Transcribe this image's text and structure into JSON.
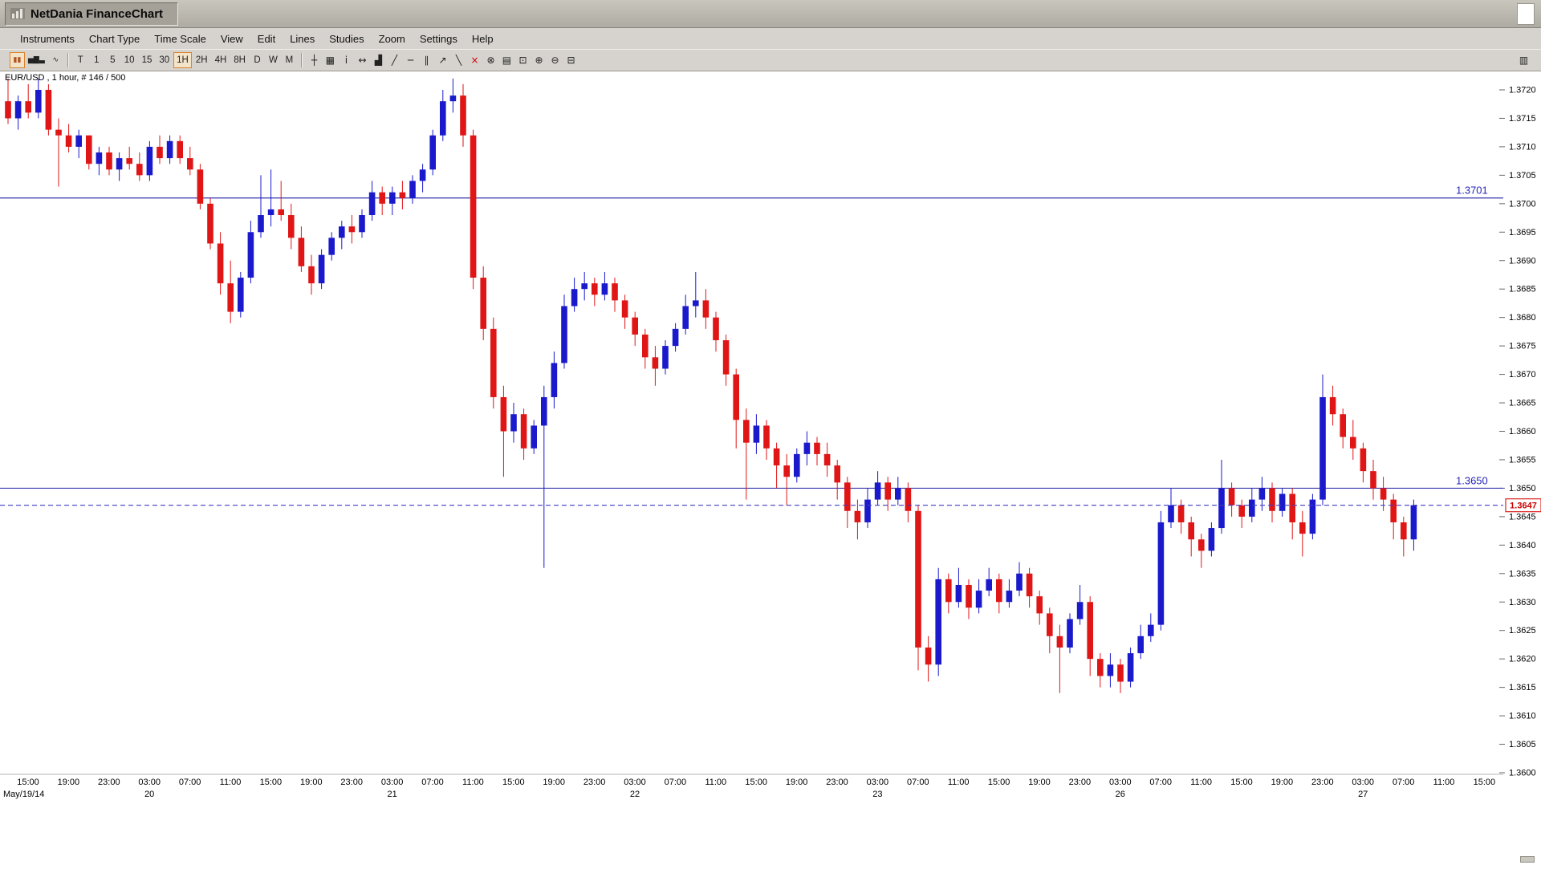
{
  "window": {
    "title": "NetDania FinanceChart"
  },
  "menubar": {
    "items": [
      "Instruments",
      "Chart Type",
      "Time Scale",
      "View",
      "Edit",
      "Lines",
      "Studies",
      "Zoom",
      "Settings",
      "Help"
    ]
  },
  "toolbar": {
    "mode_buttons": [
      {
        "name": "pause-icon",
        "glyph": "▮▮",
        "color": "#b3541f",
        "active": true
      },
      {
        "name": "bar-chart-type-icon",
        "glyph": "▅▇▃",
        "color": "#222222",
        "active": false
      },
      {
        "name": "line-chart-type-icon",
        "glyph": "∿",
        "color": "#222222",
        "active": false
      }
    ],
    "timeframes": [
      "T",
      "1",
      "5",
      "10",
      "15",
      "30",
      "1H",
      "2H",
      "4H",
      "8H",
      "D",
      "W",
      "M"
    ],
    "selected_timeframe": "1H",
    "tool_icons": [
      {
        "name": "crosshair-icon",
        "glyph": "┼",
        "color": "#222222"
      },
      {
        "name": "grid-icon",
        "glyph": "▦",
        "color": "#222222"
      },
      {
        "name": "info-icon",
        "glyph": "i",
        "color": "#222222"
      },
      {
        "name": "expand-horizontal-icon",
        "glyph": "↔",
        "color": "#222222"
      },
      {
        "name": "volume-icon",
        "glyph": "▟",
        "color": "#222222"
      },
      {
        "name": "trendline-icon",
        "glyph": "╱",
        "color": "#222222"
      },
      {
        "name": "horizontal-line-icon",
        "glyph": "─",
        "color": "#222222"
      },
      {
        "name": "channel-icon",
        "glyph": "∥",
        "color": "#222222"
      },
      {
        "name": "ray-icon",
        "glyph": "↗",
        "color": "#222222"
      },
      {
        "name": "freehand-draw-icon",
        "glyph": "╲",
        "color": "#222222"
      },
      {
        "name": "delete-drawing-icon",
        "glyph": "×",
        "color": "#cc0000"
      },
      {
        "name": "delete-all-icon",
        "glyph": "⊗",
        "color": "#222222"
      },
      {
        "name": "print-icon",
        "glyph": "▤",
        "color": "#222222"
      },
      {
        "name": "zoom-box-icon",
        "glyph": "⊡",
        "color": "#222222"
      },
      {
        "name": "zoom-in-icon",
        "glyph": "⊕",
        "color": "#222222"
      },
      {
        "name": "zoom-out-icon",
        "glyph": "⊖",
        "color": "#222222"
      },
      {
        "name": "zoom-reset-icon",
        "glyph": "⊟",
        "color": "#222222"
      }
    ],
    "right_icon": {
      "name": "axis-settings-icon",
      "glyph": "▥"
    }
  },
  "chart_data": {
    "type": "candlestick",
    "symbol": "EUR/USD",
    "interval": "1 hour",
    "bar_counter": "# 146 / 500",
    "title_label": "EUR/USD , 1 hour, # 146 / 500",
    "up_color": "#1a1acc",
    "down_color": "#e01616",
    "line_color": "#3535ad",
    "y_axis": {
      "min": 1.36,
      "max": 1.372,
      "tick_step": 0.0005
    },
    "x_axis": {
      "time_labels": [
        "15:00",
        "19:00",
        "23:00",
        "03:00",
        "07:00",
        "11:00",
        "15:00",
        "19:00",
        "23:00",
        "03:00",
        "07:00",
        "11:00",
        "15:00",
        "19:00",
        "23:00",
        "03:00",
        "07:00",
        "11:00",
        "15:00",
        "19:00",
        "23:00",
        "03:00",
        "07:00",
        "11:00",
        "15:00",
        "19:00",
        "23:00",
        "03:00",
        "07:00",
        "11:00",
        "15:00",
        "19:00",
        "23:00",
        "03:00",
        "07:00",
        "11:00",
        "15:00"
      ],
      "date_labels": [
        {
          "label": "May/19/14",
          "tick_index": 0
        },
        {
          "label": "20",
          "tick_index": 3
        },
        {
          "label": "21",
          "tick_index": 9
        },
        {
          "label": "22",
          "tick_index": 15
        },
        {
          "label": "23",
          "tick_index": 21
        },
        {
          "label": "26",
          "tick_index": 27
        },
        {
          "label": "27",
          "tick_index": 33
        }
      ]
    },
    "horizontal_lines": [
      {
        "price": 1.3701,
        "label": "1.3701",
        "style": "solid"
      },
      {
        "price": 1.365,
        "label": "1.3650",
        "style": "solid"
      }
    ],
    "last_price": {
      "price": 1.3647,
      "label": "1.3647",
      "style": "dashed"
    },
    "candles": [
      [
        1.3718,
        1.3722,
        1.3714,
        1.3715
      ],
      [
        1.3715,
        1.3719,
        1.3713,
        1.3718
      ],
      [
        1.3718,
        1.3721,
        1.3715,
        1.3716
      ],
      [
        1.3716,
        1.3722,
        1.3715,
        1.372
      ],
      [
        1.372,
        1.3721,
        1.3712,
        1.3713
      ],
      [
        1.3713,
        1.3715,
        1.3703,
        1.3712
      ],
      [
        1.3712,
        1.3714,
        1.3709,
        1.371
      ],
      [
        1.371,
        1.3713,
        1.3708,
        1.3712
      ],
      [
        1.3712,
        1.3712,
        1.3706,
        1.3707
      ],
      [
        1.3707,
        1.371,
        1.3705,
        1.3709
      ],
      [
        1.3709,
        1.371,
        1.3705,
        1.3706
      ],
      [
        1.3706,
        1.3709,
        1.3704,
        1.3708
      ],
      [
        1.3708,
        1.371,
        1.3706,
        1.3707
      ],
      [
        1.3707,
        1.3709,
        1.3704,
        1.3705
      ],
      [
        1.3705,
        1.3711,
        1.3704,
        1.371
      ],
      [
        1.371,
        1.3712,
        1.3707,
        1.3708
      ],
      [
        1.3708,
        1.3712,
        1.3707,
        1.3711
      ],
      [
        1.3711,
        1.3712,
        1.3707,
        1.3708
      ],
      [
        1.3708,
        1.371,
        1.3705,
        1.3706
      ],
      [
        1.3706,
        1.3707,
        1.3699,
        1.37
      ],
      [
        1.37,
        1.3701,
        1.3692,
        1.3693
      ],
      [
        1.3693,
        1.3695,
        1.3684,
        1.3686
      ],
      [
        1.3686,
        1.369,
        1.3679,
        1.3681
      ],
      [
        1.3681,
        1.3688,
        1.368,
        1.3687
      ],
      [
        1.3687,
        1.3697,
        1.3686,
        1.3695
      ],
      [
        1.3695,
        1.3705,
        1.3694,
        1.3698
      ],
      [
        1.3698,
        1.3706,
        1.3696,
        1.3699
      ],
      [
        1.3699,
        1.3704,
        1.3697,
        1.3698
      ],
      [
        1.3698,
        1.37,
        1.3692,
        1.3694
      ],
      [
        1.3694,
        1.3696,
        1.3688,
        1.3689
      ],
      [
        1.3689,
        1.3691,
        1.3684,
        1.3686
      ],
      [
        1.3686,
        1.3692,
        1.3685,
        1.3691
      ],
      [
        1.3691,
        1.3695,
        1.369,
        1.3694
      ],
      [
        1.3694,
        1.3697,
        1.3692,
        1.3696
      ],
      [
        1.3696,
        1.3698,
        1.3693,
        1.3695
      ],
      [
        1.3695,
        1.3699,
        1.3694,
        1.3698
      ],
      [
        1.3698,
        1.3704,
        1.3697,
        1.3702
      ],
      [
        1.3702,
        1.3703,
        1.3698,
        1.37
      ],
      [
        1.37,
        1.3703,
        1.3698,
        1.3702
      ],
      [
        1.3702,
        1.3704,
        1.3699,
        1.3701
      ],
      [
        1.3701,
        1.3705,
        1.37,
        1.3704
      ],
      [
        1.3704,
        1.3707,
        1.3702,
        1.3706
      ],
      [
        1.3706,
        1.3713,
        1.3705,
        1.3712
      ],
      [
        1.3712,
        1.372,
        1.3711,
        1.3718
      ],
      [
        1.3718,
        1.3722,
        1.3716,
        1.3719
      ],
      [
        1.3719,
        1.3721,
        1.371,
        1.3712
      ],
      [
        1.3712,
        1.3713,
        1.3685,
        1.3687
      ],
      [
        1.3687,
        1.3689,
        1.3676,
        1.3678
      ],
      [
        1.3678,
        1.368,
        1.3664,
        1.3666
      ],
      [
        1.3666,
        1.3668,
        1.3652,
        1.366
      ],
      [
        1.366,
        1.3665,
        1.3658,
        1.3663
      ],
      [
        1.3663,
        1.3664,
        1.3655,
        1.3657
      ],
      [
        1.3657,
        1.3662,
        1.3656,
        1.3661
      ],
      [
        1.3661,
        1.3668,
        1.3636,
        1.3666
      ],
      [
        1.3666,
        1.3674,
        1.3664,
        1.3672
      ],
      [
        1.3672,
        1.3684,
        1.3671,
        1.3682
      ],
      [
        1.3682,
        1.3687,
        1.3681,
        1.3685
      ],
      [
        1.3685,
        1.3688,
        1.3683,
        1.3686
      ],
      [
        1.3686,
        1.3687,
        1.3682,
        1.3684
      ],
      [
        1.3684,
        1.3688,
        1.3683,
        1.3686
      ],
      [
        1.3686,
        1.3687,
        1.3681,
        1.3683
      ],
      [
        1.3683,
        1.3684,
        1.3678,
        1.368
      ],
      [
        1.368,
        1.3681,
        1.3675,
        1.3677
      ],
      [
        1.3677,
        1.3678,
        1.3671,
        1.3673
      ],
      [
        1.3673,
        1.3675,
        1.3668,
        1.3671
      ],
      [
        1.3671,
        1.3676,
        1.367,
        1.3675
      ],
      [
        1.3675,
        1.3679,
        1.3674,
        1.3678
      ],
      [
        1.3678,
        1.3684,
        1.3677,
        1.3682
      ],
      [
        1.3682,
        1.3688,
        1.368,
        1.3683
      ],
      [
        1.3683,
        1.3685,
        1.3678,
        1.368
      ],
      [
        1.368,
        1.3681,
        1.3674,
        1.3676
      ],
      [
        1.3676,
        1.3677,
        1.3668,
        1.367
      ],
      [
        1.367,
        1.3671,
        1.3657,
        1.3662
      ],
      [
        1.3662,
        1.3664,
        1.3648,
        1.3658
      ],
      [
        1.3658,
        1.3663,
        1.3656,
        1.3661
      ],
      [
        1.3661,
        1.3662,
        1.3655,
        1.3657
      ],
      [
        1.3657,
        1.3658,
        1.365,
        1.3654
      ],
      [
        1.3654,
        1.3656,
        1.3647,
        1.3652
      ],
      [
        1.3652,
        1.3657,
        1.3651,
        1.3656
      ],
      [
        1.3656,
        1.366,
        1.3654,
        1.3658
      ],
      [
        1.3658,
        1.3659,
        1.3654,
        1.3656
      ],
      [
        1.3656,
        1.3658,
        1.3652,
        1.3654
      ],
      [
        1.3654,
        1.3655,
        1.3648,
        1.3651
      ],
      [
        1.3651,
        1.3652,
        1.3643,
        1.3646
      ],
      [
        1.3646,
        1.3648,
        1.3641,
        1.3644
      ],
      [
        1.3644,
        1.365,
        1.3643,
        1.3648
      ],
      [
        1.3648,
        1.3653,
        1.3647,
        1.3651
      ],
      [
        1.3651,
        1.3652,
        1.3646,
        1.3648
      ],
      [
        1.3648,
        1.3652,
        1.3647,
        1.365
      ],
      [
        1.365,
        1.3651,
        1.3644,
        1.3646
      ],
      [
        1.3646,
        1.3647,
        1.3618,
        1.3622
      ],
      [
        1.3622,
        1.3624,
        1.3616,
        1.3619
      ],
      [
        1.3619,
        1.3636,
        1.3617,
        1.3634
      ],
      [
        1.3634,
        1.3635,
        1.3628,
        1.363
      ],
      [
        1.363,
        1.3636,
        1.3629,
        1.3633
      ],
      [
        1.3633,
        1.3634,
        1.3627,
        1.3629
      ],
      [
        1.3629,
        1.3634,
        1.3628,
        1.3632
      ],
      [
        1.3632,
        1.3636,
        1.3631,
        1.3634
      ],
      [
        1.3634,
        1.3635,
        1.3628,
        1.363
      ],
      [
        1.363,
        1.3634,
        1.3629,
        1.3632
      ],
      [
        1.3632,
        1.3637,
        1.3631,
        1.3635
      ],
      [
        1.3635,
        1.3636,
        1.3629,
        1.3631
      ],
      [
        1.3631,
        1.3632,
        1.3626,
        1.3628
      ],
      [
        1.3628,
        1.3629,
        1.3621,
        1.3624
      ],
      [
        1.3624,
        1.3626,
        1.3614,
        1.3622
      ],
      [
        1.3622,
        1.3628,
        1.3621,
        1.3627
      ],
      [
        1.3627,
        1.3633,
        1.3626,
        1.363
      ],
      [
        1.363,
        1.3631,
        1.3617,
        1.362
      ],
      [
        1.362,
        1.3621,
        1.3615,
        1.3617
      ],
      [
        1.3617,
        1.3621,
        1.3615,
        1.3619
      ],
      [
        1.3619,
        1.362,
        1.3614,
        1.3616
      ],
      [
        1.3616,
        1.3622,
        1.3615,
        1.3621
      ],
      [
        1.3621,
        1.3626,
        1.362,
        1.3624
      ],
      [
        1.3624,
        1.3628,
        1.3623,
        1.3626
      ],
      [
        1.3626,
        1.3646,
        1.3625,
        1.3644
      ],
      [
        1.3644,
        1.365,
        1.3643,
        1.3647
      ],
      [
        1.3647,
        1.3648,
        1.3642,
        1.3644
      ],
      [
        1.3644,
        1.3645,
        1.3638,
        1.3641
      ],
      [
        1.3641,
        1.3642,
        1.3636,
        1.3639
      ],
      [
        1.3639,
        1.3644,
        1.3638,
        1.3643
      ],
      [
        1.3643,
        1.3655,
        1.3642,
        1.365
      ],
      [
        1.365,
        1.3651,
        1.3645,
        1.3647
      ],
      [
        1.3647,
        1.3648,
        1.3643,
        1.3645
      ],
      [
        1.3645,
        1.365,
        1.3644,
        1.3648
      ],
      [
        1.3648,
        1.3652,
        1.3646,
        1.365
      ],
      [
        1.365,
        1.3651,
        1.3644,
        1.3646
      ],
      [
        1.3646,
        1.365,
        1.3645,
        1.3649
      ],
      [
        1.3649,
        1.365,
        1.3641,
        1.3644
      ],
      [
        1.3644,
        1.3646,
        1.3638,
        1.3642
      ],
      [
        1.3642,
        1.3649,
        1.3641,
        1.3648
      ],
      [
        1.3648,
        1.367,
        1.3647,
        1.3666
      ],
      [
        1.3666,
        1.3668,
        1.3661,
        1.3663
      ],
      [
        1.3663,
        1.3664,
        1.3657,
        1.3659
      ],
      [
        1.3659,
        1.3662,
        1.3655,
        1.3657
      ],
      [
        1.3657,
        1.3658,
        1.3651,
        1.3653
      ],
      [
        1.3653,
        1.3655,
        1.3648,
        1.365
      ],
      [
        1.365,
        1.3652,
        1.3646,
        1.3648
      ],
      [
        1.3648,
        1.3649,
        1.3641,
        1.3644
      ],
      [
        1.3644,
        1.3645,
        1.3638,
        1.3641
      ],
      [
        1.3641,
        1.3648,
        1.3639,
        1.3647
      ]
    ]
  }
}
